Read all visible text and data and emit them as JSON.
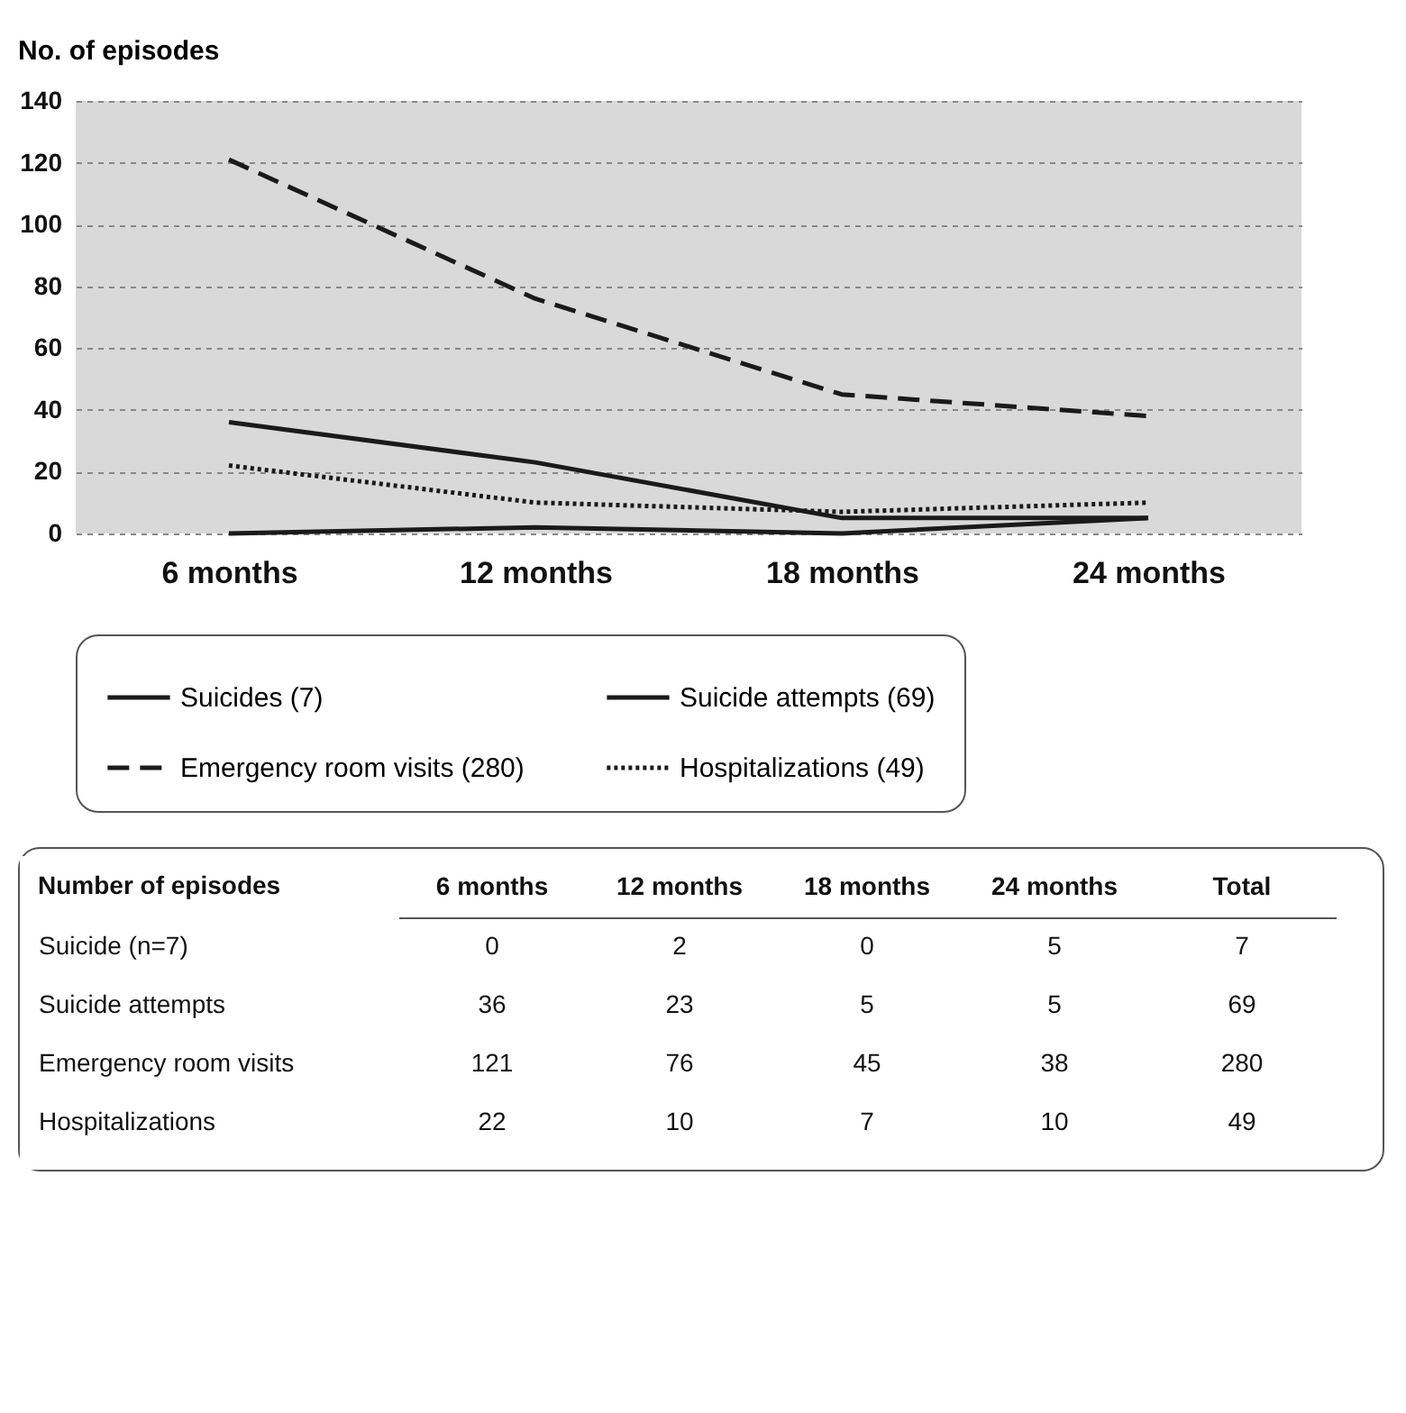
{
  "chart_data": [
    {
      "type": "line",
      "ylabel": "No. of episodes",
      "categories": [
        "6 months",
        "12 months",
        "18 months",
        "24 months"
      ],
      "series": [
        {
          "name": "Suicides (7)",
          "color": "#1a1a1a",
          "line_style": "solid",
          "values": [
            0,
            2,
            0,
            5
          ]
        },
        {
          "name": "Suicide attempts (69)",
          "color": "#1a1a1a",
          "line_style": "solid",
          "values": [
            36,
            23,
            5,
            5
          ]
        },
        {
          "name": "Emergency room visits (280)",
          "color": "#1a1a1a",
          "line_style": "dashed",
          "values": [
            121,
            76,
            45,
            38
          ]
        },
        {
          "name": "Hospitalizations (49)",
          "color": "#1a1a1a",
          "line_style": "dotted",
          "values": [
            22,
            10,
            7,
            10
          ]
        }
      ],
      "ylim": [
        0,
        140
      ],
      "yticks": [
        0,
        20,
        40,
        60,
        80,
        100,
        120,
        140
      ],
      "grid": "y",
      "legend": "bottom",
      "marker": "none"
    },
    {
      "type": "heatmap",
      "title": "Number of episodes",
      "categories": [
        "6 months",
        "12 months",
        "18 months",
        "24 months",
        "Total"
      ],
      "y_categories": [
        "Suicide (n=7)",
        "Suicide attempts",
        "Emergency room visits",
        "Hospitalizations"
      ],
      "cells": [
        [
          0,
          2,
          0,
          5,
          7
        ],
        [
          36,
          23,
          5,
          5,
          69
        ],
        [
          121,
          76,
          45,
          38,
          280
        ],
        [
          22,
          10,
          7,
          10,
          49
        ]
      ],
      "data_labels": true
    }
  ]
}
